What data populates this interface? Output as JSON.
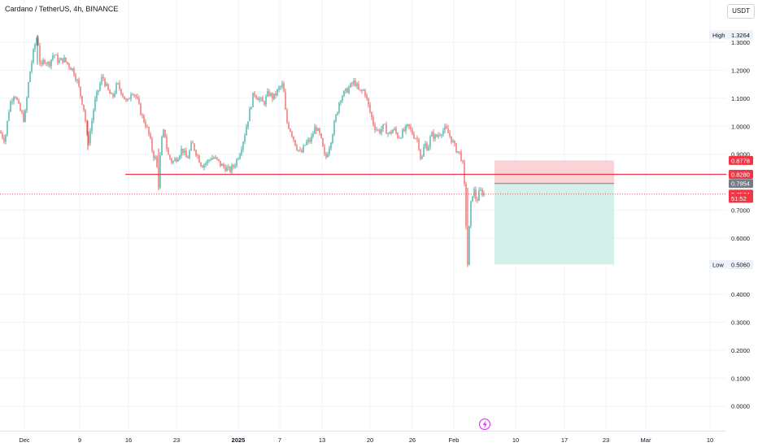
{
  "header": {
    "title": "Cardano / TetherUS, 4h, BINANCE",
    "currency_button": "USDT"
  },
  "chart_data": {
    "type": "candlestick",
    "symbol": "Cardano / TetherUS",
    "interval": "4h",
    "exchange": "BINANCE",
    "quote_currency": "USDT",
    "ylim": [
      -0.02,
      1.38
    ],
    "y_ticks": [
      "1.3000",
      "1.2000",
      "1.1000",
      "1.0000",
      "0.9000",
      "0.7000",
      "0.6000",
      "0.4000",
      "0.3000",
      "0.2000",
      "0.1000",
      "0.0000"
    ],
    "x_ticks": [
      "Dec",
      "9",
      "16",
      "23",
      "2025",
      "7",
      "13",
      "20",
      "26",
      "Feb",
      "10",
      "17",
      "23",
      "Mar",
      "10"
    ],
    "colors": {
      "up": "#26a69a",
      "down": "#ef5350",
      "line": "#f23645",
      "stop_zone": "#f9c8cd",
      "target_zone": "#cfeee7",
      "neutral": "#787b86"
    },
    "series_path": [
      [
        0,
        0.98
      ],
      [
        6,
        0.95
      ],
      [
        12,
        1.08
      ],
      [
        18,
        1.12
      ],
      [
        24,
        1.06
      ],
      [
        30,
        1.02
      ],
      [
        36,
        1.18
      ],
      [
        42,
        1.28
      ],
      [
        46,
        1.3264
      ],
      [
        50,
        1.2
      ],
      [
        54,
        1.24
      ],
      [
        60,
        1.22
      ],
      [
        66,
        1.26
      ],
      [
        72,
        1.23
      ],
      [
        78,
        1.24
      ],
      [
        84,
        1.22
      ],
      [
        90,
        1.2
      ],
      [
        95,
        1.16
      ],
      [
        100,
        1.1
      ],
      [
        104,
        1.05
      ],
      [
        108,
        0.93
      ],
      [
        112,
        1.0
      ],
      [
        116,
        1.08
      ],
      [
        122,
        1.14
      ],
      [
        126,
        1.18
      ],
      [
        132,
        1.13
      ],
      [
        138,
        1.1
      ],
      [
        144,
        1.15
      ],
      [
        150,
        1.12
      ],
      [
        156,
        1.08
      ],
      [
        162,
        1.13
      ],
      [
        168,
        1.1
      ],
      [
        174,
        1.04
      ],
      [
        180,
        1.0
      ],
      [
        184,
        0.96
      ],
      [
        188,
        0.9
      ],
      [
        192,
        0.88
      ],
      [
        195,
        0.79
      ],
      [
        198,
        0.94
      ],
      [
        202,
        0.99
      ],
      [
        206,
        0.9
      ],
      [
        212,
        0.87
      ],
      [
        218,
        0.89
      ],
      [
        224,
        0.92
      ],
      [
        230,
        0.88
      ],
      [
        236,
        0.94
      ],
      [
        242,
        0.9
      ],
      [
        248,
        0.86
      ],
      [
        254,
        0.87
      ],
      [
        260,
        0.89
      ],
      [
        266,
        0.88
      ],
      [
        272,
        0.86
      ],
      [
        278,
        0.85
      ],
      [
        282,
        0.84
      ],
      [
        288,
        0.86
      ],
      [
        294,
        0.9
      ],
      [
        300,
        0.96
      ],
      [
        306,
        1.04
      ],
      [
        312,
        1.12
      ],
      [
        318,
        1.1
      ],
      [
        324,
        1.08
      ],
      [
        330,
        1.12
      ],
      [
        336,
        1.1
      ],
      [
        342,
        1.13
      ],
      [
        348,
        1.15
      ],
      [
        352,
        1.02
      ],
      [
        358,
        0.98
      ],
      [
        364,
        0.93
      ],
      [
        370,
        0.9
      ],
      [
        376,
        0.94
      ],
      [
        382,
        0.95
      ],
      [
        388,
        1.0
      ],
      [
        394,
        0.96
      ],
      [
        400,
        0.88
      ],
      [
        406,
        0.94
      ],
      [
        412,
        1.02
      ],
      [
        418,
        1.1
      ],
      [
        424,
        1.12
      ],
      [
        430,
        1.14
      ],
      [
        436,
        1.16
      ],
      [
        442,
        1.12
      ],
      [
        448,
        1.13
      ],
      [
        454,
        1.06
      ],
      [
        460,
        1.0
      ],
      [
        466,
        0.98
      ],
      [
        472,
        1.0
      ],
      [
        478,
        0.97
      ],
      [
        484,
        0.99
      ],
      [
        490,
        0.96
      ],
      [
        496,
        0.98
      ],
      [
        502,
        1.0
      ],
      [
        508,
        0.97
      ],
      [
        514,
        0.95
      ],
      [
        518,
        0.87
      ],
      [
        522,
        0.94
      ],
      [
        526,
        0.92
      ],
      [
        530,
        0.97
      ],
      [
        536,
        0.96
      ],
      [
        542,
        0.98
      ],
      [
        548,
        0.99
      ],
      [
        554,
        0.96
      ],
      [
        560,
        0.92
      ],
      [
        566,
        0.9
      ],
      [
        570,
        0.85
      ],
      [
        572,
        0.72
      ],
      [
        575,
        0.5058
      ],
      [
        578,
        0.7
      ],
      [
        582,
        0.78
      ],
      [
        586,
        0.73
      ],
      [
        590,
        0.77
      ],
      [
        594,
        0.76
      ],
      [
        596,
        0.7574
      ]
    ],
    "horizontal_line": {
      "value": 0.828,
      "color": "#f23645"
    },
    "current_price_line": {
      "value": 0.7574,
      "style": "dotted"
    },
    "position": {
      "stop_top": 0.8778,
      "entry": 0.7954,
      "target": 0.5058
    },
    "price_labels": [
      {
        "text": "0.8778",
        "value": 0.8778,
        "bg": "#f23645",
        "fg": "#ffffff"
      },
      {
        "text": "0.8280",
        "value": 0.828,
        "bg": "#f23645",
        "fg": "#ffffff"
      },
      {
        "text": "0.7954",
        "value": 0.7954,
        "bg": "#787b86",
        "fg": "#ffffff"
      },
      {
        "text": "0.7574",
        "value": 0.7574,
        "bg": "#f23645",
        "fg": "#ffffff"
      },
      {
        "text": "51:52",
        "value": 0.7425,
        "bg": "#f23645",
        "fg": "#ffffff"
      },
      {
        "text": "0.5058",
        "value": 0.5058,
        "bg": "#089981",
        "fg": "#ffffff"
      }
    ],
    "high_low": [
      {
        "label": "High",
        "text": "1.3264",
        "value": 1.3264
      },
      {
        "label": "Low",
        "text": "0.5060",
        "value": 0.506
      }
    ]
  },
  "icons": {
    "flash": "lightning-icon"
  }
}
